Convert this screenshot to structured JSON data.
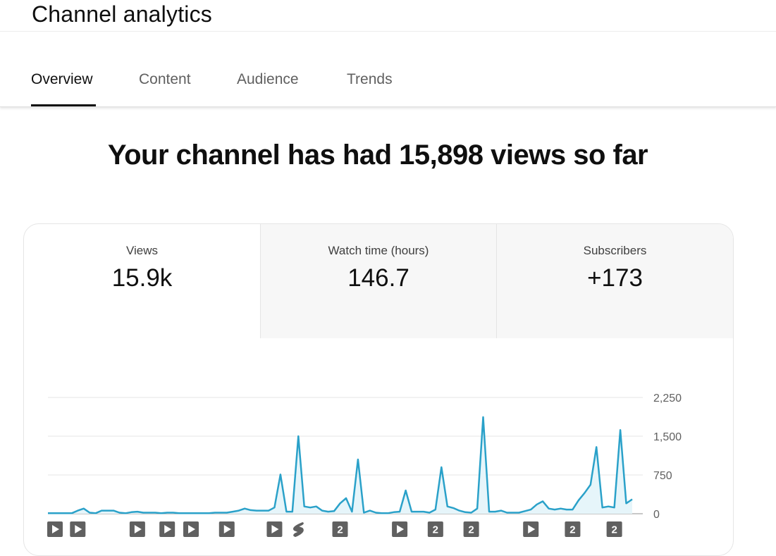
{
  "header": {
    "title": "Channel analytics"
  },
  "tabs": [
    {
      "id": "overview",
      "label": "Overview",
      "active": true
    },
    {
      "id": "content",
      "label": "Content",
      "active": false
    },
    {
      "id": "audience",
      "label": "Audience",
      "active": false
    },
    {
      "id": "trends",
      "label": "Trends",
      "active": false
    }
  ],
  "headline": "Your channel has had 15,898 views so far",
  "metrics": [
    {
      "id": "views",
      "label": "Views",
      "value": "15.9k",
      "selected": true
    },
    {
      "id": "watch-time",
      "label": "Watch time (hours)",
      "value": "146.7",
      "selected": false
    },
    {
      "id": "subscribers",
      "label": "Subscribers",
      "value": "+173",
      "selected": false
    }
  ],
  "colors": {
    "line": "#2aa1c9",
    "fill": "#e6f5fa",
    "marker": "#606060",
    "grid": "#e5e5e5"
  },
  "chart_data": {
    "type": "area",
    "series": [
      {
        "name": "",
        "values": [
          10,
          10,
          10,
          10,
          10,
          60,
          100,
          20,
          10,
          60,
          60,
          60,
          20,
          10,
          30,
          40,
          20,
          20,
          20,
          10,
          20,
          20,
          10,
          10,
          10,
          10,
          10,
          10,
          20,
          20,
          20,
          40,
          60,
          100,
          70,
          60,
          60,
          60,
          120,
          760,
          40,
          40,
          1500,
          140,
          120,
          140,
          60,
          40,
          50,
          200,
          300,
          40,
          1050,
          20,
          60,
          20,
          10,
          10,
          30,
          40,
          450,
          40,
          40,
          40,
          20,
          80,
          900,
          140,
          110,
          60,
          30,
          20,
          100,
          1870,
          40,
          40,
          60,
          20,
          20,
          20,
          50,
          80,
          180,
          240,
          100,
          80,
          100,
          80,
          80,
          260,
          400,
          560,
          1290,
          120,
          140,
          120,
          1620,
          200,
          280
        ]
      }
    ],
    "ylim": [
      0,
      2250
    ],
    "yticks": [
      "2,250",
      "1,500",
      "750",
      "0"
    ],
    "ytick_values": [
      2250,
      1500,
      750,
      0
    ],
    "grid": true,
    "publish_markers": [
      {
        "icon": "video-icon",
        "x": 0
      },
      {
        "icon": "video-icon",
        "x": 5
      },
      {
        "icon": "video-icon",
        "x": 15
      },
      {
        "icon": "video-icon",
        "x": 20
      },
      {
        "icon": "video-icon",
        "x": 24
      },
      {
        "icon": "video-icon",
        "x": 30
      },
      {
        "icon": "video-icon",
        "x": 38
      },
      {
        "icon": "shorts-icon",
        "x": 42
      },
      {
        "icon": "count-badge",
        "label": "2",
        "x": 49
      },
      {
        "icon": "video-icon",
        "x": 59
      },
      {
        "icon": "count-badge",
        "label": "2",
        "x": 65
      },
      {
        "icon": "count-badge",
        "label": "2",
        "x": 71
      },
      {
        "icon": "video-icon",
        "x": 81
      },
      {
        "icon": "count-badge",
        "label": "2",
        "x": 88
      },
      {
        "icon": "count-badge",
        "label": "2",
        "x": 95
      }
    ]
  }
}
